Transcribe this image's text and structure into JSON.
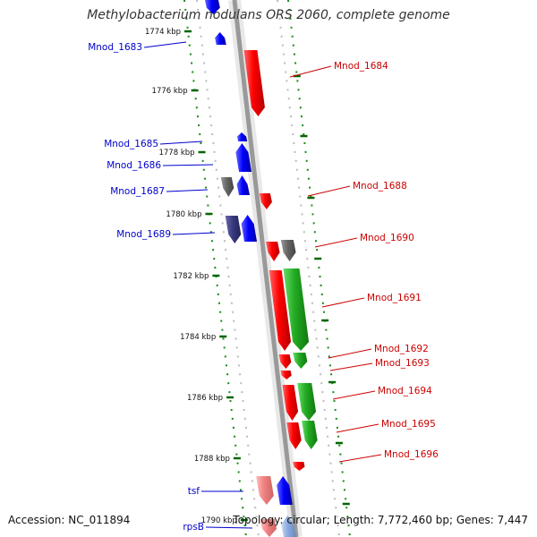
{
  "title": "Methylobacterium nodulans ORS 2060, complete genome",
  "footer": {
    "accession": "Accession: NC_011894",
    "summary": "Topology: circular; Length: 7,772,460 bp; Genes: 7,447"
  },
  "colors": {
    "plus_strand": "#ff0000",
    "minus_strand": "#0000ff",
    "rna_or_other": "#666666",
    "cds_green": "#22aa22",
    "label_left": "#0000cc",
    "label_right": "#cc0000",
    "backbone": "#999999",
    "tick": "#006600"
  },
  "ticks": [
    {
      "label": "1774 kbp"
    },
    {
      "label": "1776 kbp"
    },
    {
      "label": "1778 kbp"
    },
    {
      "label": "1780 kbp"
    },
    {
      "label": "1782 kbp"
    },
    {
      "label": "1784 kbp"
    },
    {
      "label": "1786 kbp"
    },
    {
      "label": "1788 kbp"
    },
    {
      "label": "1790 kbp"
    }
  ],
  "gene_labels_left": [
    {
      "label": "Mnod_1683"
    },
    {
      "label": "Mnod_1685"
    },
    {
      "label": "Mnod_1686"
    },
    {
      "label": "Mnod_1687"
    },
    {
      "label": "Mnod_1689"
    },
    {
      "label": "tsf"
    },
    {
      "label": "rpsB"
    }
  ],
  "gene_labels_right": [
    {
      "label": "Mnod_1684"
    },
    {
      "label": "Mnod_1688"
    },
    {
      "label": "Mnod_1690"
    },
    {
      "label": "Mnod_1691"
    },
    {
      "label": "Mnod_1692"
    },
    {
      "label": "Mnod_1693"
    },
    {
      "label": "Mnod_1694"
    },
    {
      "label": "Mnod_1695"
    },
    {
      "label": "Mnod_1696"
    }
  ]
}
